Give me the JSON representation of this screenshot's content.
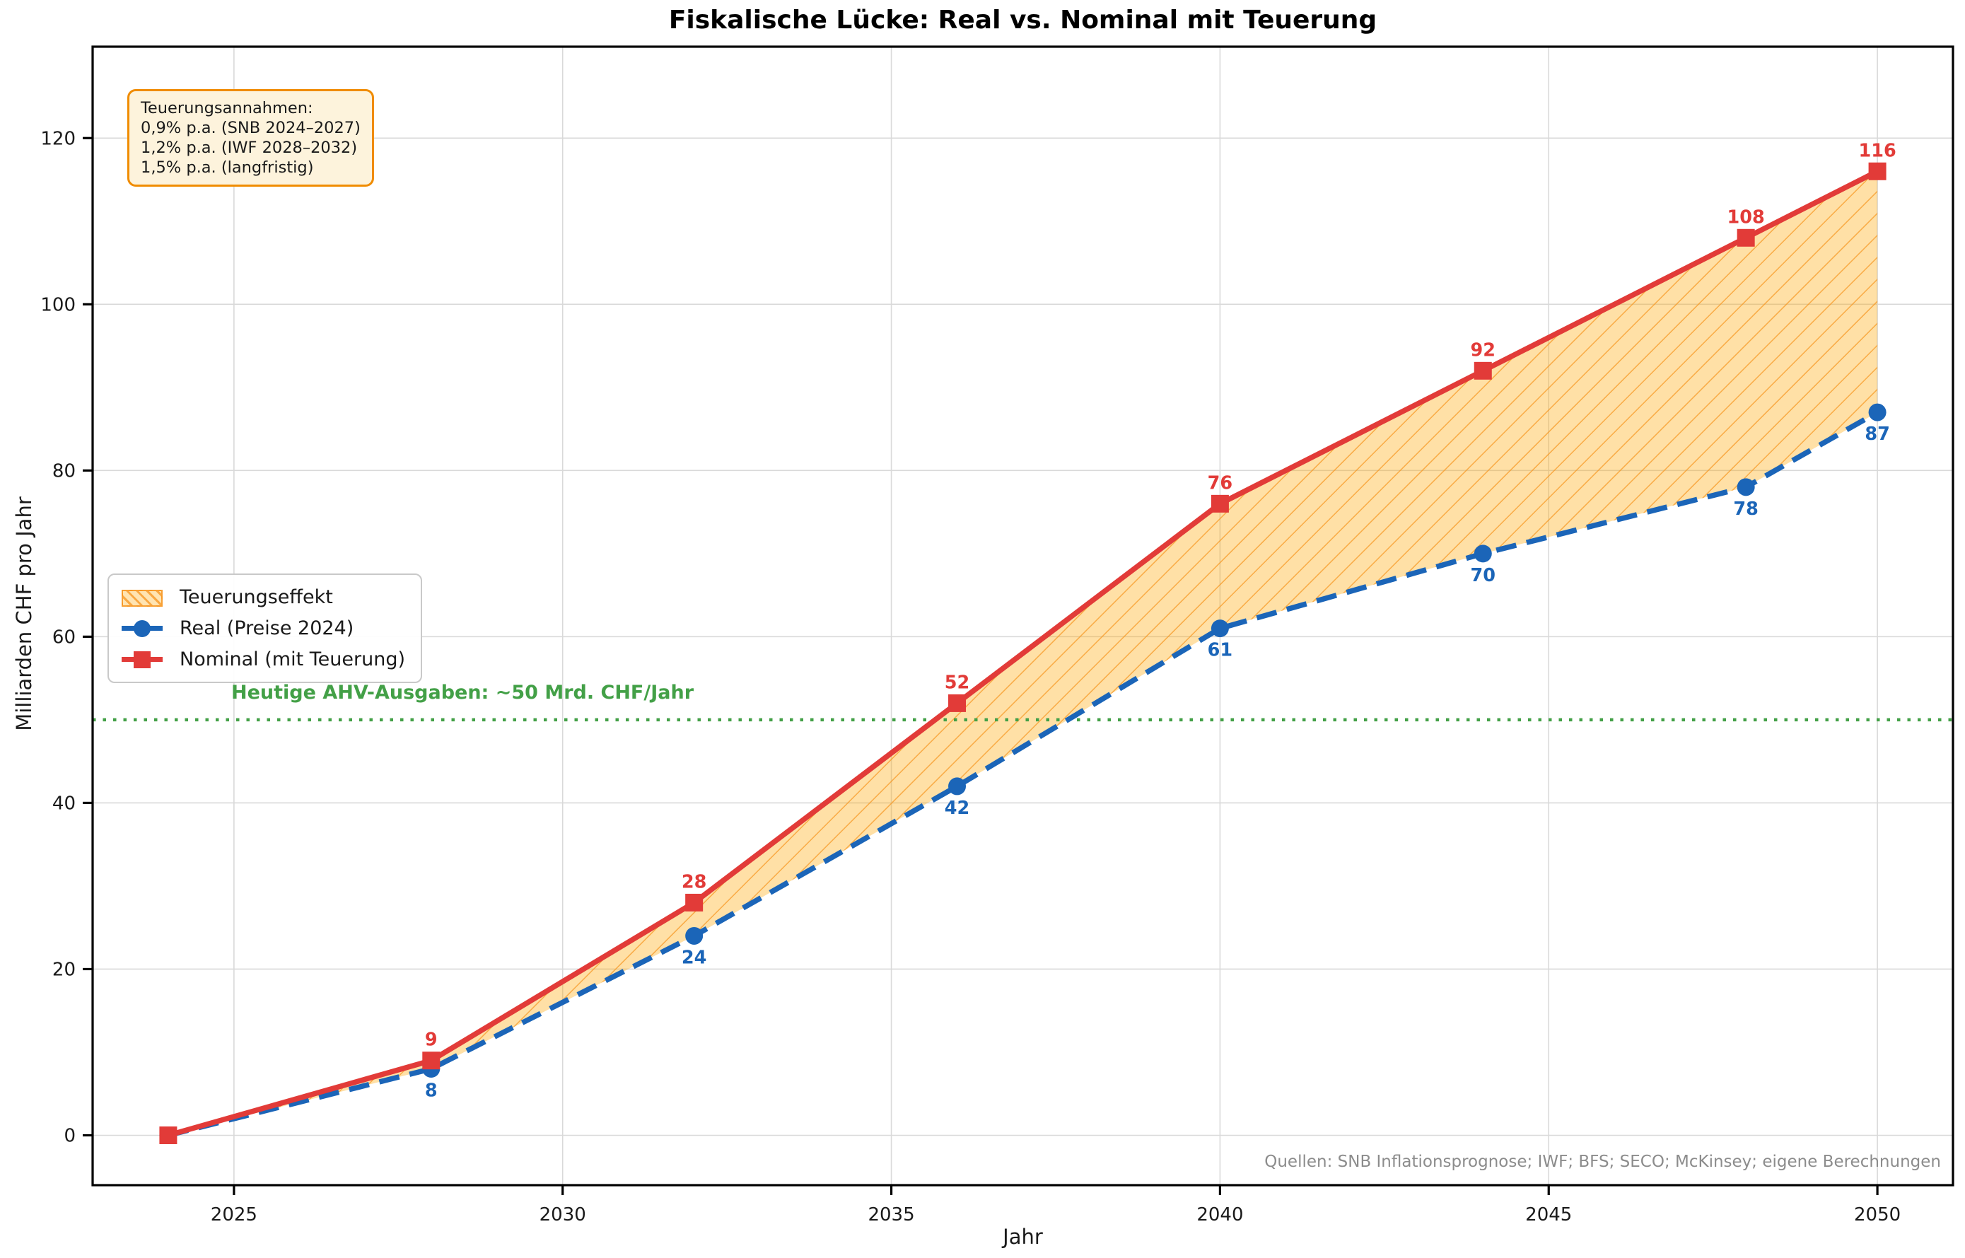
{
  "figure": {
    "title": "Fiskalische Lücke: Real vs. Nominal mit Teuerung",
    "source_note": "Quellen: SNB Inflationsprognose; IWF; BFS; SECO; McKinsey; eigene Berechnungen"
  },
  "annotation_box": {
    "line1": "Teuerungsannahmen:",
    "line2": "0,9% p.a. (SNB 2024–2027)",
    "line3": "1,2% p.a. (IWF 2028–2032)",
    "line4": "1,5% p.a. (langfristig)"
  },
  "legend": {
    "area_label": "Teuerungseffekt",
    "real_label": "Real (Preise 2024)",
    "nominal_label": "Nominal (mit Teuerung)"
  },
  "chart_data": {
    "type": "line",
    "title": "Fiskalische Lücke: Real vs. Nominal mit Teuerung",
    "xlabel": "Jahr",
    "ylabel": "Milliarden CHF pro Jahr",
    "x": [
      2024,
      2028,
      2032,
      2036,
      2040,
      2044,
      2048,
      2050
    ],
    "series": [
      {
        "name": "Real (Preise 2024)",
        "values": [
          0,
          8,
          24,
          42,
          61,
          70,
          78,
          87
        ],
        "labels": [
          "",
          "8",
          "24",
          "42",
          "61",
          "70",
          "78",
          "87"
        ],
        "color": "#1B65B8",
        "line_style": "dashed",
        "marker": "circle",
        "label_side": "below"
      },
      {
        "name": "Nominal (mit Teuerung)",
        "values": [
          0,
          9,
          28,
          52,
          76,
          92,
          108,
          116
        ],
        "labels": [
          "",
          "9",
          "28",
          "52",
          "76",
          "92",
          "108",
          "116"
        ],
        "color": "#E23B38",
        "line_style": "solid",
        "marker": "square",
        "label_side": "above"
      }
    ],
    "fill_between": {
      "label": "Teuerungseffekt",
      "between": [
        "Nominal (mit Teuerung)",
        "Real (Preise 2024)"
      ],
      "fill_color": "rgba(255,165,0,0.35)",
      "hatch_color": "rgba(247,148,29,0.70)",
      "hatch": "/"
    },
    "reference_line": {
      "y": 50,
      "label": "Heutige AHV-Ausgaben: ~50 Mrd. CHF/Jahr",
      "color": "#43A047",
      "style": "dotted"
    },
    "xticks": [
      2025,
      2030,
      2035,
      2040,
      2045,
      2050
    ],
    "yticks": [
      0,
      20,
      40,
      60,
      80,
      100,
      120
    ],
    "xlim": [
      2022.85,
      2051.15
    ],
    "ylim": [
      -6,
      131
    ],
    "grid": true,
    "legend_position": "center-left"
  }
}
